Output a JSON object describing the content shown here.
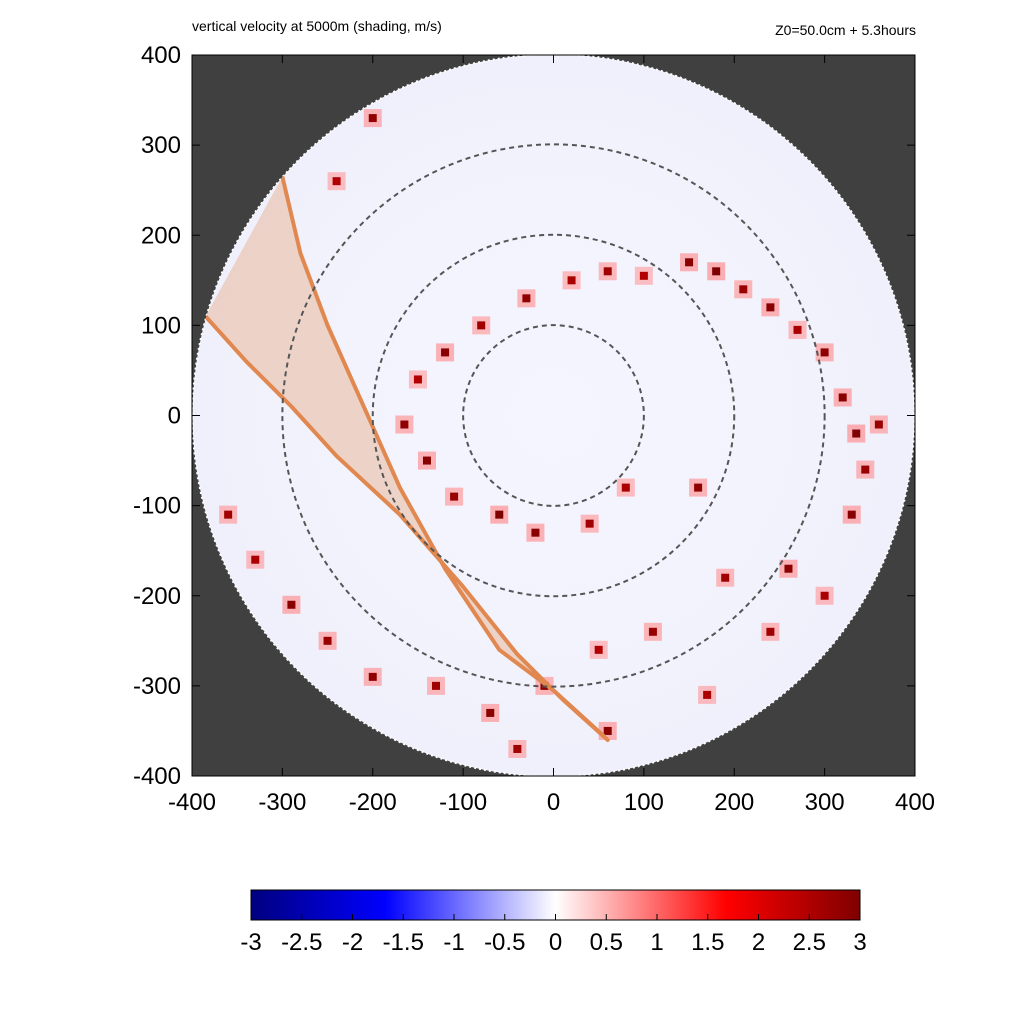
{
  "header": {
    "title": "vertical velocity at 5000m (shading, m/s)",
    "info": "Z0=50.0cm  + 5.3hours"
  },
  "colors": {
    "background_outside_domain": "#404040",
    "track_fill": "#e8b89a",
    "track_edge": "#e08850",
    "ring_stroke": "#555555",
    "scale_negative_max": "#00007f",
    "scale_negative_mid": "#0000ff",
    "scale_zero": "#ffffff",
    "scale_positive_mid": "#ff0000",
    "scale_positive_max": "#7f0000"
  },
  "chart_data": {
    "type": "heatmap",
    "variable": "vertical velocity",
    "units": "m/s",
    "xlim": [
      -400,
      400
    ],
    "ylim": [
      -400,
      400
    ],
    "x_ticks": [
      "-400",
      "-300",
      "-200",
      "-100",
      "0",
      "100",
      "200",
      "300",
      "400"
    ],
    "y_ticks": [
      "400",
      "300",
      "200",
      "100",
      "0",
      "-100",
      "-200",
      "-300",
      "-400"
    ],
    "domain_radius": 400,
    "range_rings": [
      100,
      200,
      300
    ],
    "colorbar": {
      "range": [
        -3,
        3
      ],
      "ticks": [
        "-3",
        "-2.5",
        "-2",
        "-1.5",
        "-1",
        "-0.5",
        "0",
        "0.5",
        "1",
        "1.5",
        "2",
        "2.5",
        "3"
      ]
    },
    "track_swath": {
      "left_edge": [
        [
          -300,
          265
        ],
        [
          -280,
          180
        ],
        [
          -250,
          100
        ],
        [
          -210,
          10
        ],
        [
          -170,
          -80
        ],
        [
          -120,
          -170
        ],
        [
          -60,
          -260
        ],
        [
          0,
          -305
        ],
        [
          55,
          -355
        ]
      ],
      "right_edge": [
        [
          -385,
          110
        ],
        [
          -340,
          60
        ],
        [
          -290,
          10
        ],
        [
          -240,
          -45
        ],
        [
          -170,
          -110
        ],
        [
          -100,
          -190
        ],
        [
          -40,
          -265
        ],
        [
          10,
          -315
        ],
        [
          60,
          -360
        ]
      ]
    },
    "rainband_cells": [
      {
        "x": 20,
        "y": 150,
        "w": 2.5
      },
      {
        "x": -30,
        "y": 130,
        "w": 2.8
      },
      {
        "x": 60,
        "y": 160,
        "w": 2.6
      },
      {
        "x": 100,
        "y": 155,
        "w": 2.4
      },
      {
        "x": 150,
        "y": 170,
        "w": 2.9
      },
      {
        "x": 180,
        "y": 160,
        "w": 3.0
      },
      {
        "x": 210,
        "y": 140,
        "w": 2.7
      },
      {
        "x": 240,
        "y": 120,
        "w": 2.9
      },
      {
        "x": 270,
        "y": 95,
        "w": 2.5
      },
      {
        "x": 300,
        "y": 70,
        "w": 2.8
      },
      {
        "x": 320,
        "y": 20,
        "w": 2.9
      },
      {
        "x": 335,
        "y": -20,
        "w": 3.0
      },
      {
        "x": 345,
        "y": -60,
        "w": 2.7
      },
      {
        "x": -80,
        "y": 100,
        "w": 2.6
      },
      {
        "x": -120,
        "y": 70,
        "w": 2.9
      },
      {
        "x": -150,
        "y": 40,
        "w": 2.4
      },
      {
        "x": -165,
        "y": -10,
        "w": 2.8
      },
      {
        "x": -140,
        "y": -50,
        "w": 2.9
      },
      {
        "x": -110,
        "y": -90,
        "w": 2.7
      },
      {
        "x": -60,
        "y": -110,
        "w": 3.0
      },
      {
        "x": -20,
        "y": -130,
        "w": 2.9
      },
      {
        "x": 40,
        "y": -120,
        "w": 2.6
      },
      {
        "x": 80,
        "y": -80,
        "w": 2.5
      },
      {
        "x": 160,
        "y": -80,
        "w": 2.8
      },
      {
        "x": 190,
        "y": -180,
        "w": 2.6
      },
      {
        "x": 260,
        "y": -170,
        "w": 2.9
      },
      {
        "x": 300,
        "y": -200,
        "w": 2.5
      },
      {
        "x": 110,
        "y": -240,
        "w": 2.7
      },
      {
        "x": 50,
        "y": -260,
        "w": 2.4
      },
      {
        "x": -10,
        "y": -300,
        "w": 2.8
      },
      {
        "x": -70,
        "y": -330,
        "w": 2.9
      },
      {
        "x": -130,
        "y": -300,
        "w": 2.6
      },
      {
        "x": -200,
        "y": -290,
        "w": 2.8
      },
      {
        "x": -250,
        "y": -250,
        "w": 2.7
      },
      {
        "x": -290,
        "y": -210,
        "w": 2.9
      },
      {
        "x": -330,
        "y": -160,
        "w": 2.5
      },
      {
        "x": -360,
        "y": -110,
        "w": 2.6
      },
      {
        "x": -200,
        "y": 330,
        "w": 2.8
      },
      {
        "x": -240,
        "y": 260,
        "w": 2.4
      },
      {
        "x": 330,
        "y": -110,
        "w": 2.9
      },
      {
        "x": 360,
        "y": -10,
        "w": 2.7
      },
      {
        "x": 240,
        "y": -240,
        "w": 2.6
      },
      {
        "x": 170,
        "y": -310,
        "w": 2.5
      },
      {
        "x": 60,
        "y": -350,
        "w": 2.9
      },
      {
        "x": -40,
        "y": -370,
        "w": 2.6
      }
    ]
  }
}
